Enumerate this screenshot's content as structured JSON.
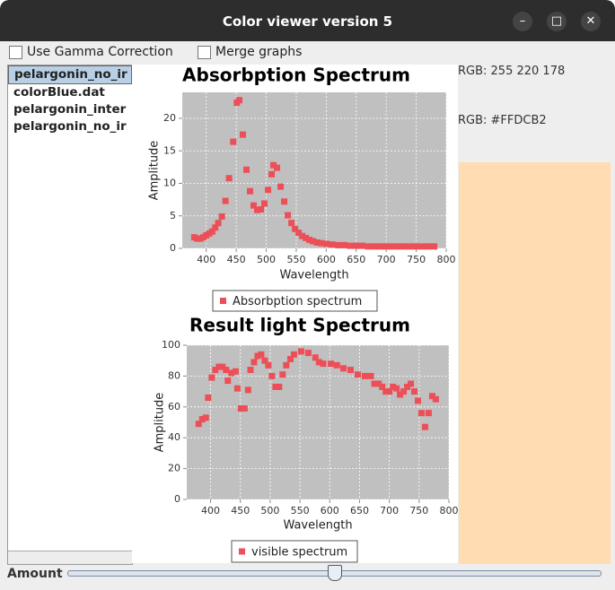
{
  "window": {
    "title": "Color viewer version 5"
  },
  "options": [
    "Use Gamma Correction",
    "Merge graphs"
  ],
  "file_list": [
    "pelargonin_no_ir",
    "colorBlue.dat",
    "pelargonin_inter",
    "pelargonin_no_ir"
  ],
  "rgb": [
    "RGB: 255 220 178",
    "RGB: #FFDCB2"
  ],
  "swatch_color": "#FFDCB2",
  "slider": {
    "label": "Amount"
  },
  "chart_data": [
    {
      "type": "scatter",
      "title": "Absorbption Spectrum",
      "x_label": "Wavelength",
      "y_label": "Amplitude",
      "x": [
        380,
        385,
        390,
        395,
        400,
        405,
        410,
        415,
        420,
        426,
        432,
        438,
        445,
        451,
        455,
        461,
        467,
        473,
        479,
        485,
        491,
        497,
        503,
        509,
        512,
        518,
        524,
        530,
        536,
        542,
        548,
        554,
        560,
        566,
        572,
        578,
        585,
        592,
        600,
        610,
        620,
        630,
        640,
        650,
        660,
        670,
        680,
        690,
        700,
        710,
        720,
        730,
        740,
        750,
        760,
        770,
        780
      ],
      "series": [
        {
          "name": "Absorbption spectrum",
          "color": "#ec4f57",
          "values": [
            1.7,
            1.5,
            1.5,
            1.7,
            2.0,
            2.3,
            2.6,
            3.2,
            3.9,
            4.9,
            7.3,
            10.8,
            16.4,
            22.4,
            22.8,
            17.5,
            12.1,
            8.8,
            6.6,
            5.9,
            6.0,
            6.9,
            9.0,
            11.4,
            12.8,
            12.4,
            9.5,
            7.2,
            5.1,
            3.9,
            3.0,
            2.4,
            1.9,
            1.6,
            1.3,
            1.1,
            0.9,
            0.8,
            0.7,
            0.6,
            0.5,
            0.5,
            0.4,
            0.4,
            0.4,
            0.3,
            0.3,
            0.3,
            0.3,
            0.3,
            0.3,
            0.3,
            0.3,
            0.3,
            0.3,
            0.3,
            0.3
          ]
        }
      ],
      "xlim": [
        360,
        800
      ],
      "ylim": [
        0,
        24
      ],
      "xticks": [
        400,
        450,
        500,
        550,
        600,
        650,
        700,
        750,
        800
      ],
      "yticks": [
        0,
        5,
        10,
        15,
        20
      ],
      "grid": true
    },
    {
      "type": "scatter",
      "title": "Result light Spectrum",
      "x_label": "Wavelength",
      "y_label": "Amplitude",
      "x": [
        380,
        386,
        392,
        396,
        402,
        408,
        414,
        420,
        426,
        429,
        435,
        442,
        445,
        451,
        457,
        463,
        467,
        473,
        479,
        485,
        491,
        497,
        503,
        509,
        515,
        521,
        527,
        534,
        540,
        552,
        564,
        576,
        582,
        589,
        602,
        612,
        623,
        635,
        647,
        659,
        669,
        675,
        682,
        688,
        694,
        700,
        706,
        712,
        718,
        724,
        730,
        736,
        742,
        748,
        754,
        760,
        766,
        772,
        778
      ],
      "series": [
        {
          "name": "visible spectrum",
          "color": "#ec4f57",
          "values": [
            49,
            52,
            53,
            66,
            79,
            84,
            86,
            86,
            84,
            77,
            82,
            83,
            72,
            59,
            59,
            71,
            84,
            89,
            93,
            94,
            90,
            87,
            80,
            73,
            73,
            81,
            87,
            91,
            94,
            96,
            95,
            92,
            89,
            88,
            88,
            87,
            85,
            84,
            81,
            80,
            80,
            75,
            75,
            73,
            70,
            70,
            73,
            72,
            68,
            70,
            73,
            75,
            70,
            64,
            56,
            47,
            56,
            67,
            65
          ]
        }
      ],
      "xlim": [
        360,
        800
      ],
      "ylim": [
        0,
        100
      ],
      "xticks": [
        400,
        450,
        500,
        550,
        600,
        650,
        700,
        750,
        800
      ],
      "yticks": [
        0,
        20,
        40,
        60,
        80,
        100
      ],
      "grid": true
    }
  ]
}
